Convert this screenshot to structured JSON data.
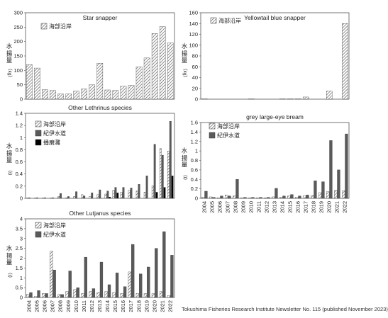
{
  "caption": "Tokushima Fisheries Research Institute Newsletter No. 115 (published November 2023)",
  "years": [
    "2004",
    "2005",
    "2006",
    "2007",
    "2008",
    "2009",
    "2010",
    "2011",
    "2012",
    "2013",
    "2014",
    "2015",
    "2016",
    "2017",
    "2018",
    "2019",
    "2020",
    "2021",
    "2022"
  ],
  "colors": {
    "frame": "#555555",
    "bar_light": "#ffffff",
    "bar_hatch": "#555555",
    "bar_gray": "#5a5a5a",
    "bar_black": "#000000"
  },
  "chart_data": [
    {
      "id": "star",
      "type": "bar",
      "title": "Star snapper",
      "ylabel": "水揚量",
      "yunit": "（kg）",
      "ylim": [
        0,
        300
      ],
      "yticks": [
        "0",
        "50",
        "100",
        "150",
        "200",
        "250",
        "300"
      ],
      "show_xticks": false,
      "legend": "top-left",
      "series": [
        {
          "name": "海部沿岸",
          "style": "hatch",
          "values": [
            120,
            108,
            33,
            30,
            18,
            18,
            28,
            35,
            50,
            125,
            32,
            30,
            45,
            48,
            112,
            143,
            228,
            252,
            195
          ]
        }
      ]
    },
    {
      "id": "yellowtail",
      "type": "bar",
      "title": "Yellowtail blue snapper",
      "ylabel": "水揚量",
      "yunit": "（kg）",
      "ylim": [
        0,
        160
      ],
      "yticks": [
        "0",
        "20",
        "40",
        "60",
        "80",
        "100",
        "120",
        "140",
        "160"
      ],
      "show_xticks": false,
      "legend": "top-left",
      "series": [
        {
          "name": "海部沿岸",
          "style": "hatch",
          "values": [
            0.5,
            0,
            0,
            0,
            0,
            0,
            0.5,
            0,
            0,
            0,
            0.5,
            0.5,
            0.5,
            4,
            0,
            0,
            15,
            0,
            140
          ]
        }
      ]
    },
    {
      "id": "lethrinus",
      "type": "bar",
      "title": "Other Lethrinus species",
      "ylabel": "水揚量",
      "yunit": "（t）",
      "ylim": [
        0,
        1.4
      ],
      "yticks": [
        "0",
        "0.2",
        "0.4",
        "0.6",
        "0.8",
        "1",
        "1.2",
        "1.4"
      ],
      "show_xticks": false,
      "legend": "top-left",
      "series": [
        {
          "name": "海部沿岸",
          "style": "hatch",
          "values": [
            0.005,
            0.005,
            0.005,
            0.005,
            0.03,
            0.01,
            0.03,
            0.06,
            0.03,
            0.06,
            0.07,
            0.13,
            0.1,
            0.13,
            0.12,
            0.1,
            0.21,
            0.82,
            0.78
          ]
        },
        {
          "name": "紀伊水道",
          "style": "gray",
          "values": [
            0.01,
            0.01,
            0.01,
            0.01,
            0.08,
            0.03,
            0.11,
            0.04,
            0.09,
            0.14,
            0.12,
            0.18,
            0.18,
            0.17,
            0.23,
            0.37,
            0.89,
            0.71,
            1.27
          ]
        },
        {
          "name": "播磨灘",
          "style": "black",
          "values": [
            0,
            0,
            0,
            0,
            0,
            0,
            0,
            0,
            0,
            0,
            0.02,
            0.09,
            0,
            0,
            0,
            0,
            0.1,
            0.18,
            0.37
          ]
        }
      ]
    },
    {
      "id": "bream",
      "type": "bar",
      "title": "grey large-eye bream",
      "ylabel": "水揚量",
      "yunit": "（t）",
      "ylim": [
        0,
        1.6
      ],
      "yticks": [
        "0",
        "0.2",
        "0.4",
        "0.6",
        "0.8",
        "1",
        "1.2",
        "1.4",
        "1.6"
      ],
      "show_xticks": true,
      "legend": "top-left",
      "series": [
        {
          "name": "海部沿岸",
          "style": "hatch",
          "values": [
            0.02,
            0.03,
            0.01,
            0.07,
            0.05,
            0.01,
            0.01,
            0.01,
            0.01,
            0.03,
            0.02,
            0.05,
            0.02,
            0.05,
            0.06,
            0.12,
            0.14,
            0.17,
            0.16
          ]
        },
        {
          "name": "紀伊水道",
          "style": "gray",
          "values": [
            0.15,
            0.02,
            0.05,
            0.05,
            0.4,
            0.02,
            0.02,
            0.02,
            0.02,
            0.21,
            0.05,
            0.08,
            0.05,
            0.07,
            0.37,
            0.35,
            1.22,
            0.6,
            1.36
          ]
        }
      ]
    },
    {
      "id": "lutjanus",
      "type": "bar",
      "title": "Other Lutjanus species",
      "ylabel": "水揚量",
      "yunit": "（t）",
      "ylim": [
        0,
        4
      ],
      "yticks": [
        "0",
        "0.5",
        "1",
        "1.5",
        "2",
        "2.5",
        "3",
        "3.5",
        "4"
      ],
      "show_xticks": true,
      "legend": "top-left",
      "series": [
        {
          "name": "海部沿岸",
          "style": "hatch",
          "values": [
            0.15,
            0.05,
            0.2,
            2.35,
            0.15,
            0.3,
            0.4,
            0.2,
            0.3,
            0.25,
            0.3,
            0.25,
            0.2,
            1.3,
            0.2,
            0.2,
            0.2,
            0.3,
            0.1
          ]
        },
        {
          "name": "紀伊水道",
          "style": "gray",
          "values": [
            0.25,
            0.35,
            0.2,
            1.4,
            0.15,
            1.35,
            0.5,
            2.05,
            0.45,
            1.8,
            0.65,
            1.25,
            0.55,
            2.7,
            1.2,
            1.55,
            2.5,
            3.35,
            2.15
          ]
        }
      ]
    }
  ]
}
